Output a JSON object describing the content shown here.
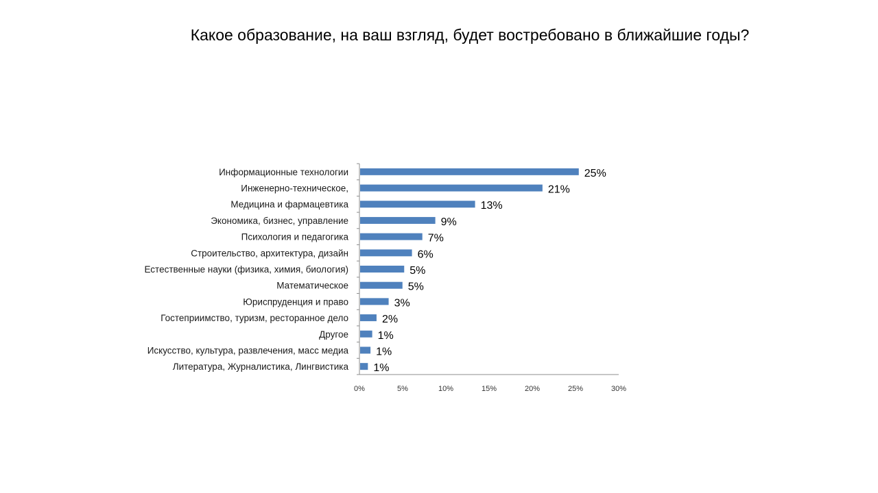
{
  "slide": {
    "title": "Какое образование, на ваш взгляд, будет востребовано в ближайшие годы?"
  },
  "chart_data": {
    "type": "bar",
    "orientation": "horizontal",
    "title": "",
    "xlabel": "",
    "ylabel": "",
    "xlim": [
      0,
      30
    ],
    "x_tick_labels": [
      "0%",
      "5%",
      "10%",
      "15%",
      "20%",
      "25%",
      "30%"
    ],
    "x_ticks": [
      0,
      5,
      10,
      15,
      20,
      25,
      30
    ],
    "grid": false,
    "legend": "none",
    "bar_color": "#4F81BD",
    "categories": [
      "Информационные технологии",
      "Инженерно-техническое,",
      "Медицина и фармацевтика",
      "Экономика, бизнес, управление",
      "Психология и педагогика",
      "Строительство, архитектура, дизайн",
      "Естественные науки (физика, химия, биология)",
      "Математическое",
      "Юриспруденция и право",
      "Гостеприимство, туризм,  ресторанное дело",
      "Другое",
      "Искусство, культура, развлечения, масс медиа",
      "Литература, Журналистика, Лингвистика"
    ],
    "values": [
      25.3,
      21.1,
      13.3,
      8.7,
      7.2,
      6.0,
      5.1,
      4.9,
      3.3,
      1.9,
      1.4,
      1.2,
      0.9
    ],
    "data_labels": [
      "25%",
      "21%",
      "13%",
      "9%",
      "7%",
      "6%",
      "5%",
      "5%",
      "3%",
      "2%",
      "1%",
      "1%",
      "1%"
    ]
  }
}
